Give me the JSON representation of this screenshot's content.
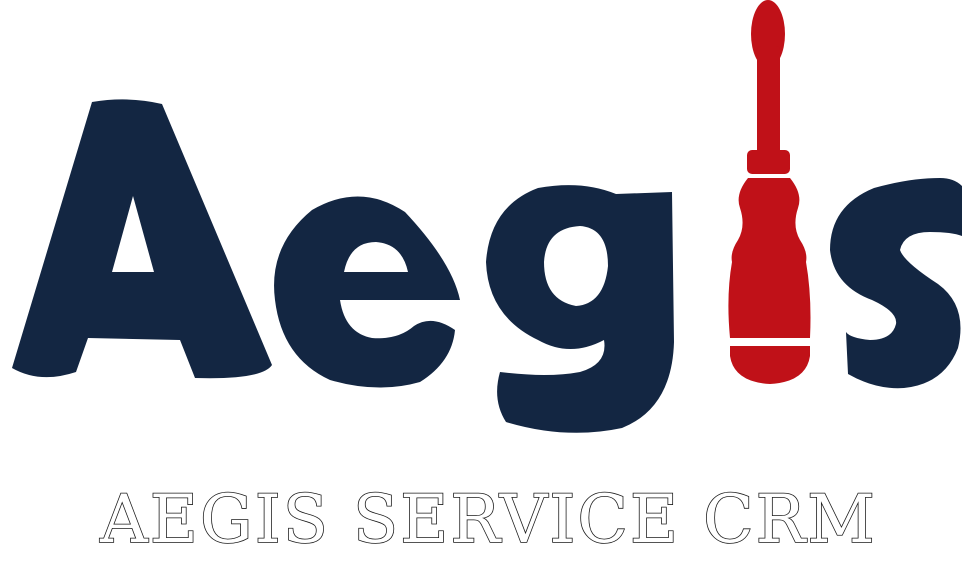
{
  "logo": {
    "wordmark": "Aegis",
    "tagline": "AEGIS SERVICE CRM",
    "icons": {
      "screwdriver": "screwdriver-icon"
    },
    "colors": {
      "navy": "#132642",
      "red": "#c01118",
      "background": "#ffffff"
    }
  }
}
